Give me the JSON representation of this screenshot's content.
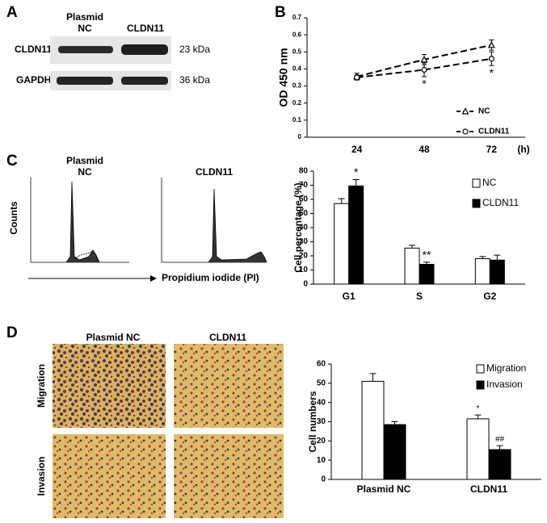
{
  "panel_labels": [
    "A",
    "B",
    "C",
    "D"
  ],
  "western_blot": {
    "columns": [
      [
        "Plasmid",
        "NC"
      ],
      [
        "CLDN11"
      ]
    ],
    "rows": [
      "CLDN11",
      "GAPDH"
    ],
    "sizes": [
      "23 kDa",
      "36 kDa"
    ]
  },
  "flow_cytometry": {
    "columns": [
      [
        "Plasmid",
        "NC"
      ],
      [
        "CLDN11"
      ]
    ],
    "ylabel": "Counts",
    "xlabel": "Propidium iodide (PI)"
  },
  "transwell": {
    "columns": [
      "Plasmid  NC",
      "CLDN11"
    ],
    "rows": [
      "Migration",
      "Invasion"
    ]
  },
  "chart_data": [
    {
      "type": "line",
      "ylabel": "OD 450 nm",
      "xlabel": "(h)",
      "categories": [
        "24",
        "48",
        "72"
      ],
      "series": [
        {
          "name": "NC",
          "color": "#000000",
          "values": [
            0.355,
            0.455,
            0.54
          ],
          "errors": [
            0.02,
            0.03,
            0.03
          ]
        },
        {
          "name": "CLDN11",
          "color": "#000000",
          "values": [
            0.35,
            0.395,
            0.46
          ],
          "errors": [
            0.015,
            0.04,
            0.04
          ]
        }
      ],
      "ylim": [
        0,
        0.7
      ],
      "yticks": [
        0,
        0.1,
        0.2,
        0.3,
        0.4,
        0.5,
        0.6,
        0.7
      ],
      "annotations": [
        "*",
        "*"
      ]
    },
    {
      "type": "bar",
      "ylabel": "Cell percentage (%)",
      "categories": [
        "G1",
        "S",
        "G2"
      ],
      "series": [
        {
          "name": "NC",
          "color": "#ffffff",
          "values": [
            57,
            25.5,
            18
          ],
          "errors": [
            3.5,
            2,
            1.5
          ]
        },
        {
          "name": "CLDN11",
          "color": "#000000",
          "values": [
            69.5,
            14,
            17
          ],
          "errors": [
            4.5,
            1.5,
            3.5
          ]
        }
      ],
      "ylim": [
        0,
        80
      ],
      "yticks": [
        0,
        10,
        20,
        30,
        40,
        50,
        60,
        70,
        80
      ],
      "annotations": [
        "*",
        "**"
      ]
    },
    {
      "type": "bar",
      "ylabel": "Cell numbers",
      "categories": [
        "Plasmid NC",
        "CLDN11"
      ],
      "series": [
        {
          "name": "Migration",
          "color": "#ffffff",
          "values": [
            51,
            31.5
          ],
          "errors": [
            4,
            2
          ]
        },
        {
          "name": "Invasion",
          "color": "#000000",
          "values": [
            28.5,
            15.5
          ],
          "errors": [
            1.5,
            2
          ]
        }
      ],
      "ylim": [
        0,
        60
      ],
      "yticks": [
        0,
        10,
        20,
        30,
        40,
        50,
        60
      ],
      "annotations": [
        "*",
        "##"
      ]
    }
  ]
}
